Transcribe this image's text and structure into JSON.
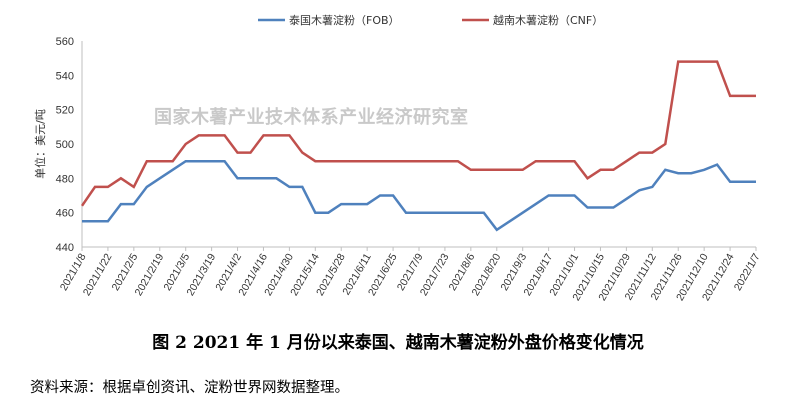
{
  "chart_data": {
    "type": "line",
    "ylabel": "单位：美元/吨",
    "ylim": [
      440,
      560
    ],
    "yticks": [
      440,
      460,
      480,
      500,
      520,
      540,
      560
    ],
    "legend_position": "top",
    "watermark": "国家木薯产业技术体系产业经济研究室",
    "x": [
      "2021/1/8",
      "2021/1/15",
      "2021/1/22",
      "2021/1/29",
      "2021/2/5",
      "2021/2/12",
      "2021/2/19",
      "2021/2/26",
      "2021/3/5",
      "2021/3/12",
      "2021/3/19",
      "2021/3/26",
      "2021/4/2",
      "2021/4/9",
      "2021/4/16",
      "2021/4/23",
      "2021/4/30",
      "2021/5/7",
      "2021/5/14",
      "2021/5/21",
      "2021/5/28",
      "2021/6/4",
      "2021/6/11",
      "2021/6/18",
      "2021/6/25",
      "2021/7/2",
      "2021/7/9",
      "2021/7/16",
      "2021/7/23",
      "2021/7/30",
      "2021/8/6",
      "2021/8/13",
      "2021/8/20",
      "2021/8/27",
      "2021/9/3",
      "2021/9/10",
      "2021/9/17",
      "2021/9/24",
      "2021/10/1",
      "2021/10/8",
      "2021/10/15",
      "2021/10/22",
      "2021/10/29",
      "2021/11/5",
      "2021/11/12",
      "2021/11/19",
      "2021/11/26",
      "2021/12/3",
      "2021/12/10",
      "2021/12/17",
      "2021/12/24",
      "2021/12/31",
      "2022/1/7"
    ],
    "x_tick_labels": [
      "2021/1/8",
      "2021/1/22",
      "2021/2/5",
      "2021/2/19",
      "2021/3/5",
      "2021/3/19",
      "2021/4/2",
      "2021/4/16",
      "2021/4/30",
      "2021/5/14",
      "2021/5/28",
      "2021/6/11",
      "2021/6/25",
      "2021/7/9",
      "2021/7/23",
      "2021/8/6",
      "2021/8/20",
      "2021/9/3",
      "2021/9/17",
      "2021/10/1",
      "2021/10/15",
      "2021/10/29",
      "2021/11/12",
      "2021/11/26",
      "2021/12/10",
      "2021/12/24",
      "2022/1/7"
    ],
    "series": [
      {
        "name": "泰国木薯淀粉（FOB）",
        "color": "#4f81bd",
        "values": [
          455,
          455,
          455,
          465,
          465,
          475,
          480,
          485,
          490,
          490,
          490,
          490,
          480,
          480,
          480,
          480,
          475,
          475,
          460,
          460,
          465,
          465,
          465,
          470,
          470,
          460,
          460,
          460,
          460,
          460,
          460,
          460,
          450,
          455,
          460,
          465,
          470,
          470,
          470,
          463,
          463,
          463,
          468,
          473,
          475,
          485,
          483,
          483,
          485,
          488,
          478,
          478,
          478
        ]
      },
      {
        "name": "越南木薯淀粉（CNF）",
        "color": "#c0504d",
        "values": [
          464,
          475,
          475,
          480,
          475,
          490,
          490,
          490,
          500,
          505,
          505,
          505,
          495,
          495,
          505,
          505,
          505,
          495,
          490,
          490,
          490,
          490,
          490,
          490,
          490,
          490,
          490,
          490,
          490,
          490,
          485,
          485,
          485,
          485,
          485,
          490,
          490,
          490,
          490,
          480,
          485,
          485,
          490,
          495,
          495,
          500,
          548,
          548,
          548,
          548,
          528,
          528,
          528
        ]
      }
    ]
  },
  "caption": "图 2    2021 年 1 月份以来泰国、越南木薯淀粉外盘价格变化情况",
  "source": "资料来源：根据卓创资讯、淀粉世界网数据整理。"
}
